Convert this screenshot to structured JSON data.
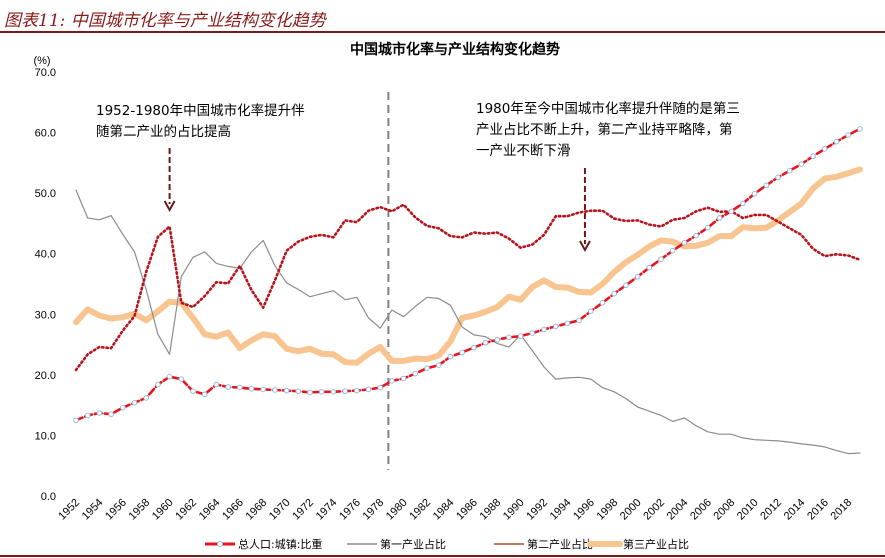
{
  "figure_title": "图表11:  中国城市化率与产业结构变化趋势",
  "chart_data": {
    "type": "line",
    "title": "中国城市化率与产业结构变化趋势",
    "ylabel": "(%)",
    "ylim": [
      0,
      70
    ],
    "yticks": [
      "0.0",
      "10.0",
      "20.0",
      "30.0",
      "40.0",
      "50.0",
      "60.0",
      "70.0"
    ],
    "xlim": [
      1952,
      2019
    ],
    "xticks": [
      "1952",
      "1954",
      "1956",
      "1958",
      "1960",
      "1962",
      "1964",
      "1966",
      "1968",
      "1970",
      "1972",
      "1974",
      "1976",
      "1978",
      "1980",
      "1982",
      "1984",
      "1986",
      "1988",
      "1990",
      "1992",
      "1994",
      "1996",
      "1998",
      "2000",
      "2002",
      "2004",
      "2006",
      "2008",
      "2010",
      "2012",
      "2014",
      "2016",
      "2018"
    ],
    "grid": false,
    "legend_position": "bottom",
    "divider_year": 1978.7,
    "annotations": [
      {
        "lines": [
          "1952-1980年中国城市化率提升伴",
          "随第二产业的占比提高"
        ],
        "arrow_year": 1960
      },
      {
        "lines": [
          "1980年至今中国城市化率提升伴随的是第三",
          "产业占比不断上升，第二产业持平略降，第",
          "一产业不断下滑"
        ],
        "arrow_year": 1995.5
      }
    ],
    "x_start": 1952,
    "series": [
      {
        "name": "总人口:城镇:比重",
        "color": "#e8141c",
        "marker_color": "#9ab8e0",
        "style": "dash-marker",
        "values": [
          12.5,
          13.3,
          13.7,
          13.5,
          14.6,
          15.4,
          16.2,
          18.4,
          19.7,
          19.3,
          17.3,
          16.8,
          18.4,
          18.0,
          17.9,
          17.7,
          17.6,
          17.5,
          17.4,
          17.3,
          17.1,
          17.2,
          17.2,
          17.3,
          17.4,
          17.6,
          17.9,
          19.0,
          19.4,
          20.2,
          21.1,
          21.6,
          23.0,
          23.7,
          24.5,
          25.3,
          25.8,
          26.2,
          26.4,
          26.9,
          27.5,
          28.0,
          28.5,
          29.0,
          30.5,
          31.9,
          33.4,
          34.8,
          36.2,
          37.7,
          39.1,
          40.5,
          41.8,
          43.0,
          44.3,
          45.9,
          47.0,
          48.3,
          49.9,
          51.3,
          52.6,
          53.7,
          54.8,
          56.1,
          57.3,
          58.5,
          59.6,
          60.6
        ]
      },
      {
        "name": "第一产业占比",
        "color": "#8c8c8c",
        "style": "thin",
        "values": [
          50.5,
          45.9,
          45.6,
          46.3,
          43.2,
          40.3,
          34.1,
          26.7,
          23.4,
          36.2,
          39.4,
          40.3,
          38.4,
          37.9,
          37.6,
          40.3,
          42.2,
          38.0,
          35.2,
          34.1,
          32.9,
          33.4,
          33.9,
          32.4,
          32.8,
          29.4,
          27.7,
          30.7,
          29.6,
          31.3,
          32.8,
          32.6,
          31.5,
          27.9,
          26.6,
          26.3,
          25.2,
          24.6,
          26.6,
          24.0,
          21.3,
          19.3,
          19.5,
          19.6,
          19.3,
          17.9,
          17.2,
          16.1,
          14.7,
          14.0,
          13.3,
          12.3,
          12.9,
          11.6,
          10.6,
          10.2,
          10.2,
          9.6,
          9.3,
          9.2,
          9.1,
          8.9,
          8.6,
          8.4,
          8.1,
          7.5,
          7.0,
          7.1
        ]
      },
      {
        "name": "第二产业占比",
        "color": "#b8141c",
        "style": "dotted",
        "values": [
          20.8,
          23.4,
          24.6,
          24.4,
          27.3,
          29.7,
          37.0,
          42.8,
          44.5,
          31.9,
          31.2,
          33.0,
          35.3,
          35.1,
          38.0,
          34.0,
          31.1,
          35.6,
          40.5,
          42.0,
          42.8,
          43.1,
          42.7,
          45.5,
          45.2,
          47.1,
          47.7,
          47.0,
          48.1,
          46.0,
          44.6,
          44.2,
          42.9,
          42.7,
          43.5,
          43.3,
          43.5,
          42.5,
          41.0,
          41.5,
          43.1,
          46.2,
          46.2,
          46.8,
          47.1,
          47.1,
          45.8,
          45.4,
          45.5,
          44.8,
          44.5,
          45.6,
          45.9,
          47.0,
          47.6,
          46.9,
          47.0,
          45.9,
          46.4,
          46.4,
          45.3,
          44.2,
          43.1,
          40.8,
          39.6,
          39.9,
          39.7,
          39.0
        ]
      },
      {
        "name": "第三产业占比",
        "color": "#f8c490",
        "style": "thick",
        "values": [
          28.7,
          30.8,
          29.8,
          29.3,
          29.5,
          30.1,
          29.0,
          30.5,
          32.1,
          31.9,
          29.4,
          26.7,
          26.3,
          27.0,
          24.4,
          25.7,
          26.7,
          26.4,
          24.3,
          23.9,
          24.3,
          23.5,
          23.4,
          22.1,
          22.0,
          23.5,
          24.6,
          22.3,
          22.3,
          22.7,
          22.6,
          23.2,
          25.5,
          29.4,
          29.8,
          30.4,
          31.2,
          32.9,
          32.4,
          34.5,
          35.6,
          34.5,
          34.4,
          33.7,
          33.6,
          35.0,
          37.0,
          38.6,
          39.8,
          41.2,
          42.2,
          42.0,
          41.2,
          41.3,
          41.8,
          42.9,
          42.9,
          44.4,
          44.2,
          44.3,
          45.5,
          46.9,
          48.3,
          50.8,
          52.4,
          52.7,
          53.3,
          53.9
        ]
      }
    ]
  }
}
